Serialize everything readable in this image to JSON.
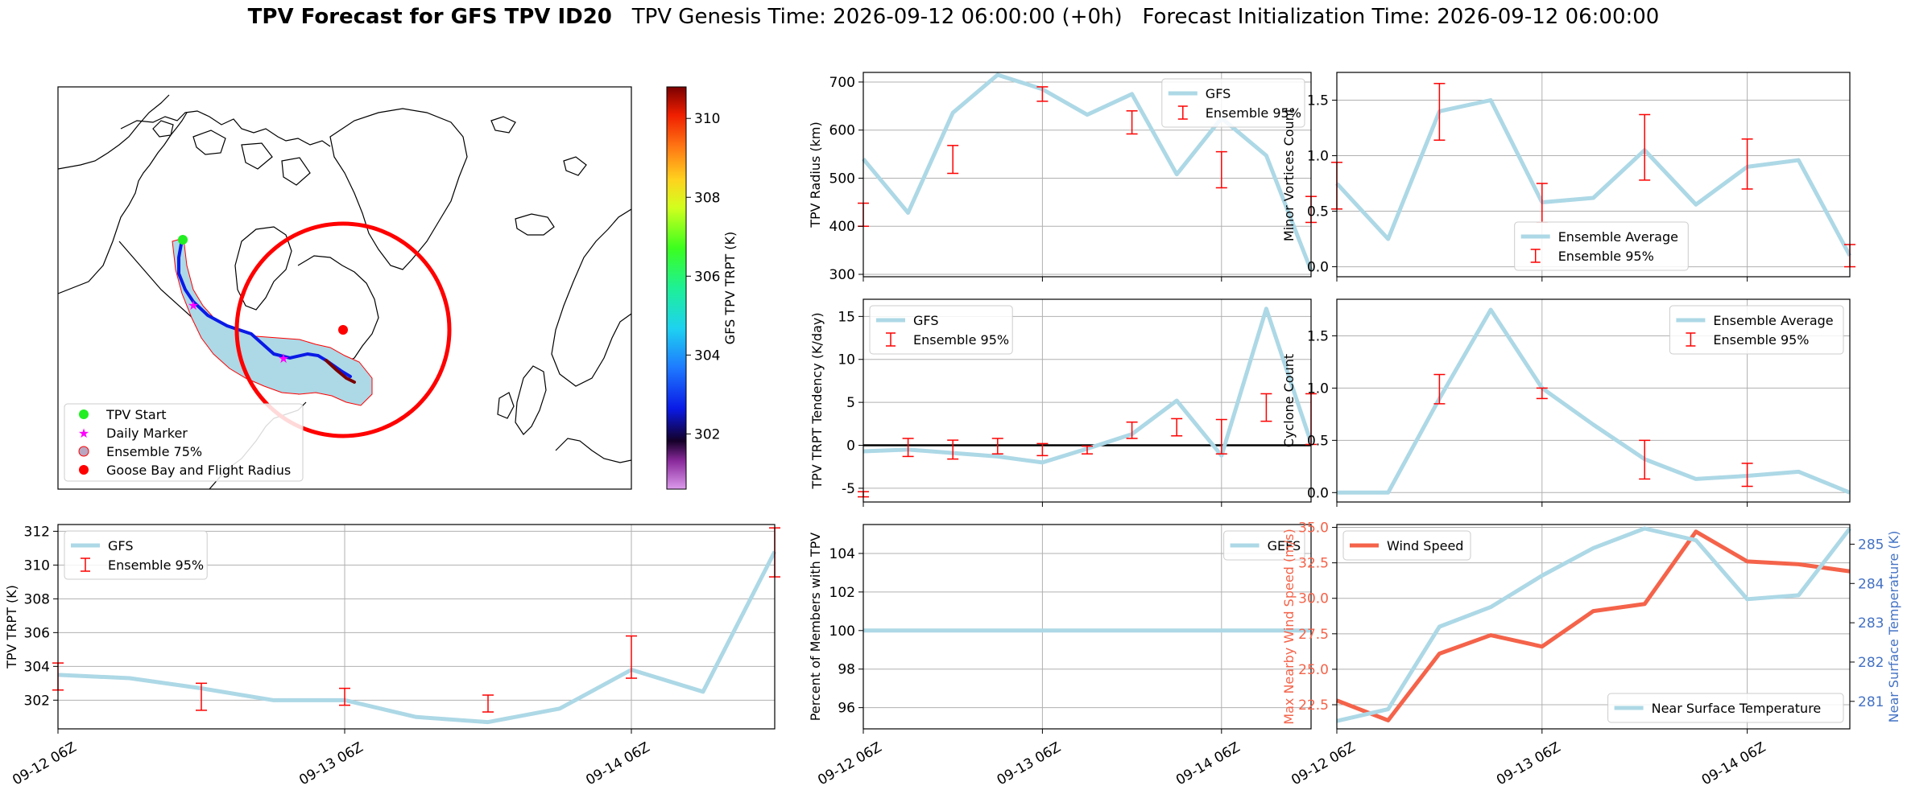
{
  "header": {
    "title_bold": "TPV Forecast for GFS TPV ID20",
    "title_genesis": "TPV Genesis Time: 2026-09-12 06:00:00 (+0h)",
    "title_init": "Forecast Initialization Time: 2026-09-12 06:00:00"
  },
  "colors": {
    "mean_line": "#add8e6",
    "errorbar": "#ff0000",
    "wind_line": "#f4634a",
    "temp_axis": "#4472c4",
    "zero_line": "#000000",
    "grid": "#b0b0b0"
  },
  "map": {
    "legend": [
      "TPV Start",
      "Daily Marker",
      "Ensemble 75%",
      "Goose Bay and Flight Radius"
    ],
    "colorbar_label": "GFS TPV TRPT (K)",
    "colorbar_ticks": [
      302,
      304,
      306,
      308,
      310
    ],
    "colorbar_range": [
      300.6,
      310.8
    ],
    "colorbar_colormap": "gist_ncar-like: violet, black, blue, cyan, green, yellow, orange, red, dark red"
  },
  "chart_data": [
    {
      "id": "radius",
      "type": "line",
      "x": [
        0,
        1,
        2,
        3,
        4,
        5,
        6,
        7,
        8,
        9,
        10
      ],
      "xlim": [
        0,
        10
      ],
      "ylim": [
        295,
        720
      ],
      "yticks": [
        300,
        400,
        500,
        600,
        700
      ],
      "ylabel": "TPV Radius (km)",
      "xticklabels": [],
      "legend": [
        "GFS",
        "Ensemble 95%"
      ],
      "legend_loc": "upper right",
      "series": [
        {
          "name": "GFS",
          "values": [
            540,
            428,
            636,
            715,
            685,
            632,
            675,
            508,
            625,
            547,
            308
          ]
        }
      ],
      "errorbars": [
        {
          "x": 0,
          "low": 400,
          "high": 448
        },
        {
          "x": 2,
          "low": 510,
          "high": 568
        },
        {
          "x": 4,
          "low": 660,
          "high": 690
        },
        {
          "x": 6,
          "low": 592,
          "high": 640
        },
        {
          "x": 8,
          "low": 480,
          "high": 555
        },
        {
          "x": 10,
          "low": 408,
          "high": 462
        }
      ]
    },
    {
      "id": "minor",
      "type": "line",
      "x": [
        0,
        1,
        2,
        3,
        4,
        5,
        6,
        7,
        8,
        9,
        10
      ],
      "xlim": [
        0,
        10
      ],
      "ylim": [
        -0.09,
        1.75
      ],
      "yticks": [
        0.0,
        0.5,
        1.0,
        1.5
      ],
      "yticklabels": [
        "0.0",
        "0.5",
        "1.0",
        "1.5"
      ],
      "ylabel": "Minor Vortices Count",
      "xticklabels": [],
      "legend": [
        "Ensemble Average",
        "Ensemble 95%"
      ],
      "legend_loc": "lower center",
      "series": [
        {
          "name": "Ensemble Average",
          "values": [
            0.75,
            0.25,
            1.4,
            1.5,
            0.58,
            0.62,
            1.05,
            0.56,
            0.9,
            0.96,
            0.1
          ]
        }
      ],
      "errorbars": [
        {
          "x": 0,
          "low": 0.52,
          "high": 0.94
        },
        {
          "x": 2,
          "low": 1.14,
          "high": 1.65
        },
        {
          "x": 4,
          "low": 0.4,
          "high": 0.75
        },
        {
          "x": 6,
          "low": 0.78,
          "high": 1.37
        },
        {
          "x": 8,
          "low": 0.7,
          "high": 1.15
        },
        {
          "x": 10,
          "low": 0.0,
          "high": 0.2
        }
      ]
    },
    {
      "id": "tendency",
      "type": "line",
      "x": [
        0,
        1,
        2,
        3,
        4,
        5,
        6,
        7,
        8,
        9,
        10
      ],
      "xlim": [
        0,
        10
      ],
      "ylim": [
        -6.6,
        17.0
      ],
      "yticks": [
        -5,
        0,
        5,
        10,
        15
      ],
      "ylabel": "TPV TRPT Tendency (K/day)",
      "xticklabels": [],
      "hline": 0,
      "legend": [
        "GFS",
        "Ensemble 95%"
      ],
      "legend_loc": "upper left",
      "series": [
        {
          "name": "GFS",
          "values": [
            -0.7,
            -0.5,
            -0.9,
            -1.3,
            -2.0,
            -0.4,
            1.3,
            5.2,
            -1.2,
            15.9,
            0.3
          ]
        }
      ],
      "errorbars": [
        {
          "x": 0,
          "low": -6.0,
          "high": -5.4
        },
        {
          "x": 1,
          "low": -1.3,
          "high": 0.8
        },
        {
          "x": 2,
          "low": -1.6,
          "high": 0.6
        },
        {
          "x": 3,
          "low": -1.0,
          "high": 0.8
        },
        {
          "x": 4,
          "low": -1.2,
          "high": 0.2
        },
        {
          "x": 5,
          "low": -1.0,
          "high": -0.1
        },
        {
          "x": 6,
          "low": 0.8,
          "high": 2.7
        },
        {
          "x": 7,
          "low": 1.1,
          "high": 3.1
        },
        {
          "x": 8,
          "low": -1.0,
          "high": 3.0
        },
        {
          "x": 9,
          "low": 2.8,
          "high": 6.0
        },
        {
          "x": 10,
          "low": 0.1,
          "high": 6.0
        }
      ]
    },
    {
      "id": "cyclone",
      "type": "line",
      "x": [
        0,
        1,
        2,
        3,
        4,
        5,
        6,
        7,
        8,
        9,
        10
      ],
      "xlim": [
        0,
        10
      ],
      "ylim": [
        -0.09,
        1.85
      ],
      "yticks": [
        0.0,
        0.5,
        1.0,
        1.5
      ],
      "yticklabels": [
        "0.0",
        "0.5",
        "1.0",
        "1.5"
      ],
      "ylabel": "Cyclone Count",
      "xticklabels": [],
      "legend": [
        "Ensemble Average",
        "Ensemble 95%"
      ],
      "legend_loc": "upper right",
      "series": [
        {
          "name": "Ensemble Average",
          "values": [
            0.0,
            0.0,
            0.9,
            1.75,
            1.0,
            0.65,
            0.32,
            0.13,
            0.16,
            0.2,
            0.0
          ]
        }
      ],
      "errorbars": [
        {
          "x": 2,
          "low": 0.85,
          "high": 1.13
        },
        {
          "x": 4,
          "low": 0.9,
          "high": 1.0
        },
        {
          "x": 6,
          "low": 0.13,
          "high": 0.5
        },
        {
          "x": 8,
          "low": 0.06,
          "high": 0.28
        }
      ]
    },
    {
      "id": "trpt",
      "type": "line",
      "x": [
        0,
        1,
        2,
        3,
        4,
        5,
        6,
        7,
        8,
        9,
        10
      ],
      "xlim": [
        0,
        10
      ],
      "ylim": [
        300.3,
        312.4
      ],
      "yticks": [
        302,
        304,
        306,
        308,
        310,
        312
      ],
      "ylabel": "TPV TRPT (K)",
      "xticks": [
        0,
        4,
        8
      ],
      "xticklabels": [
        "09-12 06Z",
        "09-13 06Z",
        "09-14 06Z"
      ],
      "legend": [
        "GFS",
        "Ensemble 95%"
      ],
      "legend_loc": "upper left",
      "series": [
        {
          "name": "GFS",
          "values": [
            303.5,
            303.3,
            302.7,
            302.0,
            302.0,
            301.0,
            300.7,
            301.5,
            303.8,
            302.5,
            310.8
          ]
        }
      ],
      "errorbars": [
        {
          "x": 0,
          "low": 302.6,
          "high": 304.2
        },
        {
          "x": 2,
          "low": 301.4,
          "high": 303.0
        },
        {
          "x": 4,
          "low": 301.7,
          "high": 302.7
        },
        {
          "x": 6,
          "low": 301.3,
          "high": 302.3
        },
        {
          "x": 8,
          "low": 303.3,
          "high": 305.8
        },
        {
          "x": 10,
          "low": 309.3,
          "high": 312.2
        }
      ]
    },
    {
      "id": "members",
      "type": "line",
      "x": [
        0,
        1,
        2,
        3,
        4,
        5,
        6,
        7,
        8,
        9,
        10
      ],
      "xlim": [
        0,
        10
      ],
      "ylim": [
        94.9,
        105.5
      ],
      "yticks": [
        96,
        98,
        100,
        102,
        104
      ],
      "ylabel": "Percent of Members with TPV",
      "xticks": [
        0,
        4,
        8
      ],
      "xticklabels": [
        "09-12 06Z",
        "09-13 06Z",
        "09-14 06Z"
      ],
      "legend": [
        "GEFS"
      ],
      "legend_loc": "upper right",
      "series": [
        {
          "name": "GEFS",
          "values": [
            100,
            100,
            100,
            100,
            100,
            100,
            100,
            100,
            100,
            100,
            100
          ]
        }
      ],
      "errorbars": []
    },
    {
      "id": "wind_temp",
      "type": "line",
      "x": [
        0,
        1,
        2,
        3,
        4,
        5,
        6,
        7,
        8,
        9,
        10
      ],
      "xlim": [
        0,
        10
      ],
      "ylim": [
        20.8,
        35.2
      ],
      "yticks": [
        22.5,
        25.0,
        27.5,
        30.0,
        32.5,
        35.0
      ],
      "yticklabels": [
        "22.5",
        "25.0",
        "27.5",
        "30.0",
        "32.5",
        "35.0"
      ],
      "ylabel": "Max Nearby Wind Speed (m/s)",
      "y2lim": [
        280.3,
        285.5
      ],
      "y2ticks": [
        281,
        282,
        283,
        284,
        285
      ],
      "y2label": "Near Surface Temperature (K)",
      "xticks": [
        0,
        4,
        8
      ],
      "xticklabels": [
        "09-12 06Z",
        "09-13 06Z",
        "09-14 06Z"
      ],
      "legend": [
        "Wind Speed"
      ],
      "legend_loc": "upper left",
      "legend2": [
        "Near Surface Temperature"
      ],
      "legend2_loc": "lower right",
      "series": [
        {
          "name": "Wind Speed",
          "axis": "left",
          "values": [
            22.8,
            21.4,
            26.1,
            27.4,
            26.6,
            29.1,
            29.6,
            34.7,
            32.6,
            32.4,
            31.9
          ]
        },
        {
          "name": "Near Surface Temperature",
          "axis": "right",
          "values": [
            280.5,
            280.8,
            282.9,
            283.4,
            284.2,
            284.9,
            285.4,
            285.1,
            283.6,
            283.7,
            285.4
          ]
        }
      ]
    }
  ]
}
